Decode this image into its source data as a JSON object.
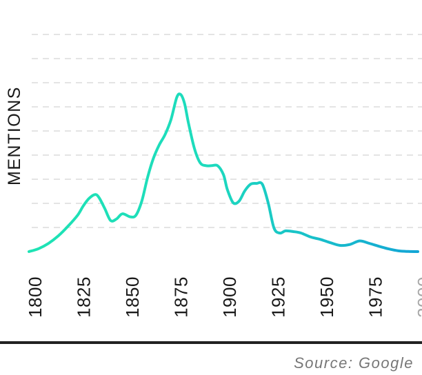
{
  "chart_data": {
    "type": "line",
    "ylabel": "MENTIONS",
    "xlabel": "",
    "x_ticks": [
      "1800",
      "1825",
      "1850",
      "1875",
      "1900",
      "1925",
      "1950",
      "1975",
      "2000"
    ],
    "faded_ticks": [
      "2000"
    ],
    "xlim": [
      1800,
      2000
    ],
    "ylim": [
      0,
      10
    ],
    "grid": "horizontal dashed",
    "series": [
      {
        "x": [
          1800,
          1805,
          1810,
          1815,
          1820,
          1825,
          1828,
          1831,
          1834,
          1836,
          1839,
          1842,
          1845,
          1848,
          1852,
          1855,
          1858,
          1861,
          1864,
          1867,
          1870,
          1873,
          1876,
          1878,
          1880,
          1882,
          1885,
          1888,
          1891,
          1894,
          1897,
          1900,
          1902,
          1905,
          1908,
          1911,
          1914,
          1917,
          1920,
          1923,
          1926,
          1929,
          1932,
          1936,
          1940,
          1945,
          1950,
          1955,
          1960,
          1965,
          1970,
          1975,
          1980,
          1985,
          1990,
          1995,
          2000
        ],
        "y": [
          0.0,
          0.2,
          0.55,
          1.05,
          1.7,
          2.45,
          3.1,
          3.6,
          3.85,
          3.65,
          2.9,
          2.1,
          2.2,
          2.55,
          2.35,
          2.45,
          3.4,
          5.0,
          6.3,
          7.2,
          7.9,
          8.9,
          10.4,
          10.6,
          10.0,
          8.7,
          7.0,
          6.0,
          5.8,
          5.8,
          5.8,
          5.2,
          4.2,
          3.3,
          3.4,
          4.1,
          4.55,
          4.6,
          4.55,
          3.3,
          1.6,
          1.25,
          1.4,
          1.35,
          1.25,
          0.98,
          0.82,
          0.6,
          0.42,
          0.48,
          0.72,
          0.56,
          0.36,
          0.18,
          0.05,
          0.01,
          0.0
        ],
        "gradient": [
          "#1ee3b4",
          "#13a4d6"
        ]
      }
    ],
    "source": "Source: Google"
  }
}
